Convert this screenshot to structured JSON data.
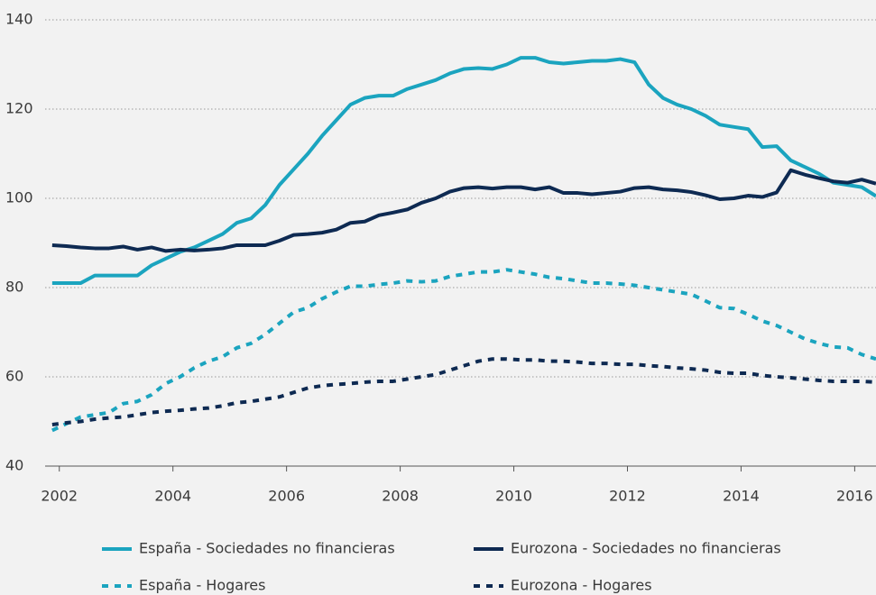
{
  "chart_data": {
    "type": "line",
    "x": [
      2001.875,
      2002.125,
      2002.375,
      2002.625,
      2002.875,
      2003.125,
      2003.375,
      2003.625,
      2003.875,
      2004.125,
      2004.375,
      2004.625,
      2004.875,
      2005.125,
      2005.375,
      2005.625,
      2005.875,
      2006.125,
      2006.375,
      2006.625,
      2006.875,
      2007.125,
      2007.375,
      2007.625,
      2007.875,
      2008.125,
      2008.375,
      2008.625,
      2008.875,
      2009.125,
      2009.375,
      2009.625,
      2009.875,
      2010.125,
      2010.375,
      2010.625,
      2010.875,
      2011.125,
      2011.375,
      2011.625,
      2011.875,
      2012.125,
      2012.375,
      2012.625,
      2012.875,
      2013.125,
      2013.375,
      2013.625,
      2013.875,
      2014.125,
      2014.375,
      2014.625,
      2014.875,
      2015.125,
      2015.375,
      2015.625,
      2015.875,
      2016.125,
      2016.375
    ],
    "series": [
      {
        "name": "España - Sociedades no financieras",
        "color": "#1ba4bf",
        "dashed": false,
        "values": [
          81,
          81,
          81,
          82.7,
          82.7,
          82.7,
          82.7,
          85,
          86.5,
          88,
          89,
          90.5,
          92,
          94.5,
          95.5,
          98.5,
          103,
          106.5,
          110,
          114,
          117.5,
          121,
          122.5,
          123,
          123,
          124.5,
          125.5,
          126.5,
          128,
          129,
          129.2,
          129,
          130,
          131.5,
          131.5,
          130.5,
          130.2,
          130.5,
          130.8,
          130.8,
          131.2,
          130.5,
          125.5,
          122.5,
          121,
          120,
          118.5,
          116.5,
          116,
          115.5,
          111.5,
          111.7,
          108.5,
          107,
          105.5,
          103.5,
          103,
          102.5,
          100.5
        ]
      },
      {
        "name": "Eurozona - Sociedades no financieras",
        "color": "#0e2a52",
        "dashed": false,
        "values": [
          89.5,
          89.3,
          89,
          88.8,
          88.8,
          89.2,
          88.5,
          89,
          88.2,
          88.5,
          88.3,
          88.5,
          88.8,
          89.5,
          89.5,
          89.5,
          90.5,
          91.8,
          92,
          92.3,
          93,
          94.5,
          94.8,
          96.2,
          96.8,
          97.5,
          99,
          100,
          101.5,
          102.3,
          102.5,
          102.2,
          102.5,
          102.5,
          102,
          102.5,
          101.2,
          101.2,
          100.9,
          101.2,
          101.5,
          102.3,
          102.5,
          102,
          101.8,
          101.4,
          100.7,
          99.8,
          100,
          100.6,
          100.3,
          101.3,
          106.3,
          105.3,
          104.5,
          103.8,
          103.5,
          104.2,
          103.3
        ]
      },
      {
        "name": "España - Hogares",
        "color": "#1ba4bf",
        "dashed": true,
        "values": [
          48,
          49.5,
          51,
          51.5,
          52,
          54,
          54.5,
          56,
          58.5,
          60,
          62,
          63.5,
          64.5,
          66.5,
          67.5,
          69.5,
          72,
          74.5,
          75.5,
          77.5,
          79,
          80.3,
          80.3,
          80.7,
          81,
          81.5,
          81.3,
          81.5,
          82.5,
          83,
          83.5,
          83.5,
          84,
          83.5,
          83,
          82.3,
          82,
          81.5,
          81,
          81,
          80.8,
          80.5,
          80,
          79.5,
          79,
          78.5,
          77,
          75.5,
          75.3,
          74,
          72.5,
          71.5,
          70,
          68.5,
          67.5,
          66.7,
          66.5,
          65,
          64
        ]
      },
      {
        "name": "Eurozona - Hogares",
        "color": "#0e2a52",
        "dashed": true,
        "values": [
          49.3,
          49.7,
          50,
          50.5,
          50.8,
          51,
          51.5,
          52,
          52.3,
          52.5,
          52.8,
          53,
          53.5,
          54.2,
          54.5,
          55,
          55.5,
          56.5,
          57.5,
          58,
          58.3,
          58.5,
          58.8,
          59,
          59,
          59.5,
          60,
          60.5,
          61.5,
          62.5,
          63.5,
          64,
          64,
          63.8,
          63.8,
          63.5,
          63.5,
          63.3,
          63,
          63,
          62.8,
          62.8,
          62.5,
          62.3,
          62,
          61.8,
          61.5,
          61,
          60.8,
          60.8,
          60.3,
          60,
          59.8,
          59.5,
          59.2,
          59,
          59,
          59,
          58.8
        ]
      }
    ],
    "xlim": [
      2001.75,
      2016.375
    ],
    "xticks": [
      2002,
      2004,
      2006,
      2008,
      2010,
      2012,
      2014,
      2016
    ],
    "ylim": [
      40,
      140
    ],
    "yticks": [
      40,
      60,
      80,
      100,
      120,
      140
    ],
    "grid": true
  }
}
